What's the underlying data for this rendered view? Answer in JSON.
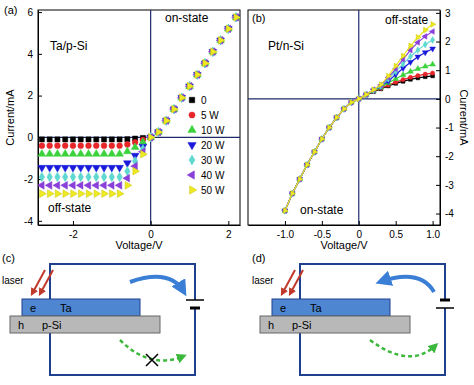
{
  "chart_data": [
    {
      "type": "scatter",
      "annotations": [
        "(a)",
        "Ta/p-Si",
        "on-state",
        "off-state"
      ],
      "x_label": "Voltage/V",
      "y_label": "Current/mA",
      "xlim": [
        -2.9,
        2.3
      ],
      "ylim": [
        -4.2,
        6.1
      ],
      "xticks": [
        -2,
        0,
        2
      ],
      "yticks": [
        -4,
        -2,
        0,
        2,
        4,
        6
      ],
      "legend": "right",
      "x": [
        -2.8,
        -2.6,
        -2.4,
        -2.2,
        -2.0,
        -1.8,
        -1.6,
        -1.4,
        -1.2,
        -1.0,
        -0.8,
        -0.6,
        -0.4,
        -0.2,
        0,
        0.2,
        0.4,
        0.6,
        0.8,
        1.0,
        1.2,
        1.4,
        1.6,
        1.8,
        2.0,
        2.2
      ],
      "series": [
        {
          "name": "0",
          "color": "#000000",
          "marker": "square",
          "values": [
            -0.1,
            -0.1,
            -0.1,
            -0.1,
            -0.1,
            -0.1,
            -0.1,
            -0.1,
            -0.1,
            -0.1,
            -0.1,
            -0.09,
            -0.06,
            -0.03,
            0,
            0.25,
            0.8,
            1.35,
            1.9,
            2.45,
            3.0,
            3.55,
            4.1,
            4.65,
            5.2,
            5.75
          ]
        },
        {
          "name": "5 W",
          "color": "#e8262a",
          "marker": "circle",
          "values": [
            -0.4,
            -0.4,
            -0.4,
            -0.4,
            -0.4,
            -0.4,
            -0.4,
            -0.4,
            -0.4,
            -0.4,
            -0.4,
            -0.34,
            -0.24,
            -0.12,
            0,
            0.25,
            0.8,
            1.35,
            1.9,
            2.45,
            3.0,
            3.55,
            4.1,
            4.65,
            5.2,
            5.75
          ]
        },
        {
          "name": "10 W",
          "color": "#3cd23c",
          "marker": "triangle-up",
          "values": [
            -0.8,
            -0.8,
            -0.8,
            -0.8,
            -0.8,
            -0.8,
            -0.8,
            -0.8,
            -0.8,
            -0.8,
            -0.8,
            -0.68,
            -0.48,
            -0.24,
            0,
            0.25,
            0.8,
            1.35,
            1.9,
            2.45,
            3.0,
            3.55,
            4.1,
            4.65,
            5.2,
            5.75
          ]
        },
        {
          "name": "20 W",
          "color": "#1a1adc",
          "marker": "triangle-down",
          "values": [
            -1.45,
            -1.45,
            -1.45,
            -1.45,
            -1.45,
            -1.45,
            -1.45,
            -1.45,
            -1.45,
            -1.45,
            -1.45,
            -1.23,
            -0.87,
            -0.44,
            0,
            0.25,
            0.8,
            1.35,
            1.9,
            2.45,
            3.0,
            3.55,
            4.1,
            4.65,
            5.2,
            5.75
          ]
        },
        {
          "name": "30 W",
          "color": "#5fd8cf",
          "marker": "diamond",
          "values": [
            -1.9,
            -1.9,
            -1.9,
            -1.9,
            -1.9,
            -1.9,
            -1.9,
            -1.9,
            -1.9,
            -1.9,
            -1.9,
            -1.62,
            -1.14,
            -0.57,
            0,
            0.25,
            0.8,
            1.35,
            1.9,
            2.45,
            3.0,
            3.55,
            4.1,
            4.65,
            5.2,
            5.75
          ]
        },
        {
          "name": "40 W",
          "color": "#8b3fd9",
          "marker": "triangle-left",
          "values": [
            -2.3,
            -2.3,
            -2.3,
            -2.3,
            -2.3,
            -2.3,
            -2.3,
            -2.3,
            -2.3,
            -2.3,
            -2.3,
            -1.96,
            -1.38,
            -0.69,
            0,
            0.25,
            0.8,
            1.35,
            1.9,
            2.45,
            3.0,
            3.55,
            4.1,
            4.65,
            5.2,
            5.75
          ]
        },
        {
          "name": "50 W",
          "color": "#eeea22",
          "marker": "triangle-right",
          "values": [
            -2.7,
            -2.7,
            -2.7,
            -2.7,
            -2.7,
            -2.7,
            -2.7,
            -2.7,
            -2.7,
            -2.7,
            -2.7,
            -2.3,
            -1.62,
            -0.81,
            0,
            0.25,
            0.8,
            1.35,
            1.9,
            2.45,
            3.0,
            3.55,
            4.1,
            4.65,
            5.2,
            5.75
          ]
        }
      ]
    },
    {
      "type": "line",
      "annotations": [
        "(b)",
        "Pt/n-Si",
        "off-state",
        "on-state"
      ],
      "x_label": "Voltage/V",
      "y_label": "Current/mA",
      "xlim": [
        -1.5,
        1.1
      ],
      "y2lim": [
        -4.4,
        3.1
      ],
      "xticks": [
        {
          "value": -1,
          "label": "-1.0"
        },
        -0.5,
        0,
        0.5,
        {
          "value": 1,
          "label": "1.0"
        }
      ],
      "y2ticks": [
        -4,
        -3,
        -2,
        -1,
        0,
        1,
        2,
        3
      ],
      "x": [
        -1.0,
        -0.9,
        -0.8,
        -0.7,
        -0.6,
        -0.5,
        -0.4,
        -0.3,
        -0.2,
        -0.1,
        0,
        0.1,
        0.2,
        0.3,
        0.4,
        0.5,
        0.6,
        0.7,
        0.8,
        0.9,
        1.0
      ],
      "series": [
        {
          "axis": "y2",
          "color": "#000000",
          "marker": "square",
          "line_style": "solid",
          "values": [
            -3.9,
            -3.3,
            -2.8,
            -2.3,
            -1.85,
            -1.4,
            -1.0,
            -0.65,
            -0.35,
            -0.12,
            0,
            0.13,
            0.25,
            0.35,
            0.45,
            0.54,
            0.61,
            0.68,
            0.73,
            0.77,
            0.8
          ]
        },
        {
          "axis": "y2",
          "color": "#e8262a",
          "marker": "circle",
          "line_style": "solid",
          "values": [
            -3.9,
            -3.3,
            -2.8,
            -2.3,
            -1.85,
            -1.4,
            -1.0,
            -0.65,
            -0.35,
            -0.12,
            0,
            0.14,
            0.27,
            0.37,
            0.48,
            0.58,
            0.67,
            0.75,
            0.81,
            0.86,
            0.9
          ]
        },
        {
          "axis": "y2",
          "color": "#3cd23c",
          "marker": "triangle-up",
          "line_style": "solid",
          "values": [
            -3.9,
            -3.3,
            -2.8,
            -2.3,
            -1.85,
            -1.4,
            -1.0,
            -0.65,
            -0.35,
            -0.12,
            0,
            0.14,
            0.28,
            0.4,
            0.55,
            0.7,
            0.83,
            0.95,
            1.05,
            1.13,
            1.2
          ]
        },
        {
          "axis": "y2",
          "color": "#1a1adc",
          "marker": "triangle-down",
          "line_style": "solid",
          "values": [
            -3.9,
            -3.3,
            -2.8,
            -2.3,
            -1.85,
            -1.4,
            -1.0,
            -0.65,
            -0.35,
            -0.12,
            0,
            0.15,
            0.3,
            0.43,
            0.62,
            0.85,
            1.07,
            1.28,
            1.47,
            1.62,
            1.75
          ]
        },
        {
          "axis": "y2",
          "color": "#5fd8cf",
          "marker": "diamond",
          "line_style": "solid",
          "values": [
            -3.9,
            -3.3,
            -2.8,
            -2.3,
            -1.85,
            -1.4,
            -1.0,
            -0.65,
            -0.35,
            -0.12,
            0,
            0.15,
            0.3,
            0.45,
            0.7,
            0.95,
            1.22,
            1.48,
            1.7,
            1.9,
            2.05
          ]
        },
        {
          "axis": "y2",
          "color": "#8b3fd9",
          "marker": "triangle-left",
          "line_style": "solid",
          "values": [
            -3.9,
            -3.3,
            -2.8,
            -2.3,
            -1.85,
            -1.4,
            -1.0,
            -0.65,
            -0.35,
            -0.12,
            0,
            0.15,
            0.32,
            0.48,
            0.75,
            1.05,
            1.38,
            1.7,
            1.97,
            2.18,
            2.35
          ]
        },
        {
          "axis": "y2",
          "color": "#eeea22",
          "marker": "triangle-right",
          "line_style": "solid",
          "values": [
            -3.9,
            -3.3,
            -2.8,
            -2.3,
            -1.85,
            -1.4,
            -1.0,
            -0.65,
            -0.35,
            -0.12,
            0,
            0.15,
            0.32,
            0.5,
            0.8,
            1.15,
            1.5,
            1.85,
            2.15,
            2.4,
            2.6
          ]
        }
      ]
    }
  ],
  "diagrams": [
    {
      "label": "(c)",
      "laser": "laser",
      "top_layer": {
        "carrier": "e",
        "material": "Ta"
      },
      "bottom_layer": {
        "carrier": "h",
        "material": "p-Si"
      },
      "blocked": true
    },
    {
      "label": "(d)",
      "laser": "laser",
      "top_layer": {
        "carrier": "e",
        "material": "Ta"
      },
      "bottom_layer": {
        "carrier": "h",
        "material": "p-Si"
      },
      "blocked": false
    }
  ]
}
